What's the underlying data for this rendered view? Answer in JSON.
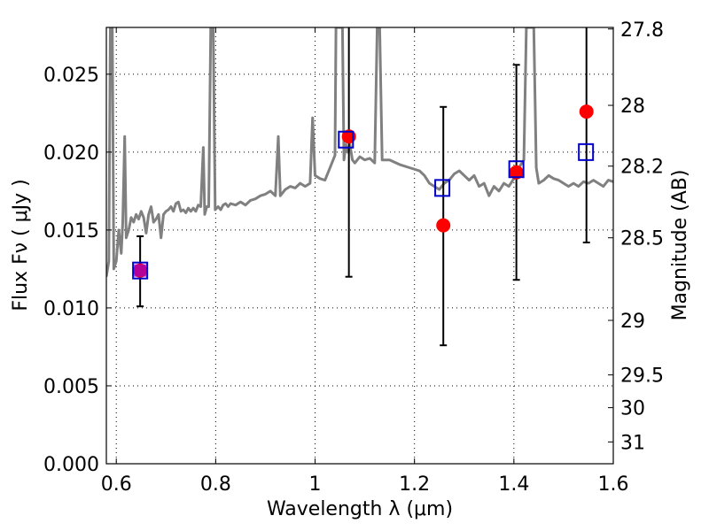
{
  "chart_data": {
    "type": "scatter",
    "title": "",
    "xlabel": "Wavelength  λ (μm)",
    "ylabel": "Flux  Fν  ( μJy )",
    "y2label": "Magnitude (AB)",
    "xlim": [
      0.58,
      1.6
    ],
    "ylim": [
      0.0,
      0.028
    ],
    "xticks": [
      0.6,
      0.8,
      1.0,
      1.2,
      1.4,
      1.6
    ],
    "xtick_labels": [
      "0.6",
      "0.8",
      "1",
      "1.2",
      "1.4",
      "1.6"
    ],
    "yticks": [
      0.0,
      0.005,
      0.01,
      0.015,
      0.02,
      0.025
    ],
    "ytick_labels": [
      "0.000",
      "0.005",
      "0.010",
      "0.015",
      "0.020",
      "0.025"
    ],
    "y2ticks": [
      {
        "label": "27.8",
        "flux": 0.0279
      },
      {
        "label": "28",
        "flux": 0.023
      },
      {
        "label": "28.2",
        "flux": 0.0191
      },
      {
        "label": "28.5",
        "flux": 0.0145
      },
      {
        "label": "29",
        "flux": 0.0092
      },
      {
        "label": "29.5",
        "flux": 0.0057
      },
      {
        "label": "30",
        "flux": 0.0036
      },
      {
        "label": "31",
        "flux": 0.0014
      }
    ],
    "grid": true,
    "series": [
      {
        "type": "line",
        "color": "#808080",
        "points": [
          [
            0.58,
            0.012
          ],
          [
            0.585,
            0.013
          ],
          [
            0.588,
            0.028
          ],
          [
            0.592,
            0.028
          ],
          [
            0.595,
            0.0125
          ],
          [
            0.6,
            0.013
          ],
          [
            0.605,
            0.015
          ],
          [
            0.61,
            0.0135
          ],
          [
            0.613,
            0.0155
          ],
          [
            0.617,
            0.021
          ],
          [
            0.62,
            0.0145
          ],
          [
            0.625,
            0.015
          ],
          [
            0.63,
            0.0158
          ],
          [
            0.635,
            0.0155
          ],
          [
            0.64,
            0.016
          ],
          [
            0.645,
            0.0157
          ],
          [
            0.65,
            0.0162
          ],
          [
            0.655,
            0.0158
          ],
          [
            0.66,
            0.0148
          ],
          [
            0.665,
            0.016
          ],
          [
            0.67,
            0.0165
          ],
          [
            0.675,
            0.0155
          ],
          [
            0.68,
            0.0157
          ],
          [
            0.685,
            0.016
          ],
          [
            0.69,
            0.0145
          ],
          [
            0.695,
            0.016
          ],
          [
            0.7,
            0.0162
          ],
          [
            0.705,
            0.0163
          ],
          [
            0.71,
            0.0165
          ],
          [
            0.715,
            0.0162
          ],
          [
            0.72,
            0.0167
          ],
          [
            0.725,
            0.0168
          ],
          [
            0.73,
            0.0162
          ],
          [
            0.735,
            0.0163
          ],
          [
            0.74,
            0.0161
          ],
          [
            0.745,
            0.0164
          ],
          [
            0.75,
            0.0162
          ],
          [
            0.755,
            0.0164
          ],
          [
            0.76,
            0.0162
          ],
          [
            0.765,
            0.0166
          ],
          [
            0.77,
            0.0165
          ],
          [
            0.775,
            0.0203
          ],
          [
            0.778,
            0.016
          ],
          [
            0.782,
            0.0165
          ],
          [
            0.786,
            0.0165
          ],
          [
            0.79,
            0.028
          ],
          [
            0.795,
            0.028
          ],
          [
            0.799,
            0.0163
          ],
          [
            0.805,
            0.0165
          ],
          [
            0.81,
            0.0163
          ],
          [
            0.815,
            0.0166
          ],
          [
            0.82,
            0.0167
          ],
          [
            0.825,
            0.0165
          ],
          [
            0.83,
            0.0167
          ],
          [
            0.84,
            0.0166
          ],
          [
            0.85,
            0.0168
          ],
          [
            0.86,
            0.0166
          ],
          [
            0.87,
            0.0169
          ],
          [
            0.88,
            0.017
          ],
          [
            0.89,
            0.0172
          ],
          [
            0.9,
            0.0173
          ],
          [
            0.91,
            0.0175
          ],
          [
            0.92,
            0.0172
          ],
          [
            0.926,
            0.021
          ],
          [
            0.93,
            0.0172
          ],
          [
            0.94,
            0.0176
          ],
          [
            0.95,
            0.0178
          ],
          [
            0.96,
            0.0177
          ],
          [
            0.97,
            0.018
          ],
          [
            0.98,
            0.0178
          ],
          [
            0.99,
            0.018
          ],
          [
            0.995,
            0.0222
          ],
          [
            1.0,
            0.0185
          ],
          [
            1.01,
            0.0183
          ],
          [
            1.02,
            0.0182
          ],
          [
            1.03,
            0.019
          ],
          [
            1.04,
            0.0198
          ],
          [
            1.042,
            0.028
          ],
          [
            1.055,
            0.028
          ],
          [
            1.058,
            0.0195
          ],
          [
            1.062,
            0.0205
          ],
          [
            1.065,
            0.02
          ],
          [
            1.07,
            0.0205
          ],
          [
            1.075,
            0.0195
          ],
          [
            1.08,
            0.0193
          ],
          [
            1.09,
            0.0197
          ],
          [
            1.1,
            0.0195
          ],
          [
            1.11,
            0.0196
          ],
          [
            1.12,
            0.0193
          ],
          [
            1.125,
            0.028
          ],
          [
            1.13,
            0.028
          ],
          [
            1.135,
            0.0195
          ],
          [
            1.15,
            0.0195
          ],
          [
            1.17,
            0.0192
          ],
          [
            1.19,
            0.019
          ],
          [
            1.21,
            0.0188
          ],
          [
            1.22,
            0.0185
          ],
          [
            1.23,
            0.018
          ],
          [
            1.24,
            0.0178
          ],
          [
            1.25,
            0.0176
          ],
          [
            1.26,
            0.018
          ],
          [
            1.27,
            0.0182
          ],
          [
            1.28,
            0.0186
          ],
          [
            1.29,
            0.0188
          ],
          [
            1.3,
            0.0185
          ],
          [
            1.31,
            0.0182
          ],
          [
            1.32,
            0.0185
          ],
          [
            1.33,
            0.0178
          ],
          [
            1.34,
            0.018
          ],
          [
            1.35,
            0.0172
          ],
          [
            1.36,
            0.0178
          ],
          [
            1.37,
            0.0175
          ],
          [
            1.38,
            0.018
          ],
          [
            1.39,
            0.0178
          ],
          [
            1.4,
            0.0183
          ],
          [
            1.41,
            0.019
          ],
          [
            1.42,
            0.0195
          ],
          [
            1.425,
            0.028
          ],
          [
            1.44,
            0.028
          ],
          [
            1.445,
            0.019
          ],
          [
            1.45,
            0.018
          ],
          [
            1.46,
            0.0182
          ],
          [
            1.47,
            0.0185
          ],
          [
            1.48,
            0.0183
          ],
          [
            1.49,
            0.0182
          ],
          [
            1.5,
            0.018
          ],
          [
            1.51,
            0.0178
          ],
          [
            1.52,
            0.018
          ],
          [
            1.53,
            0.0178
          ],
          [
            1.54,
            0.0181
          ],
          [
            1.55,
            0.018
          ],
          [
            1.56,
            0.0182
          ],
          [
            1.57,
            0.018
          ],
          [
            1.58,
            0.0178
          ],
          [
            1.59,
            0.0182
          ],
          [
            1.6,
            0.0181
          ]
        ]
      },
      {
        "type": "errorbar",
        "color": "#000000",
        "points": [
          {
            "x": 0.648,
            "low": 0.0101,
            "high": 0.0146
          },
          {
            "x": 1.068,
            "low": 0.012,
            "high": 0.028
          },
          {
            "x": 1.258,
            "low": 0.0076,
            "high": 0.0229
          },
          {
            "x": 1.405,
            "low": 0.0118,
            "high": 0.0256
          },
          {
            "x": 1.546,
            "low": 0.0142,
            "high": 0.028
          }
        ]
      },
      {
        "type": "scatter",
        "marker": "circle",
        "color": "#ff0000",
        "points": [
          [
            0.648,
            0.0124
          ],
          [
            1.068,
            0.021
          ],
          [
            1.258,
            0.0153
          ],
          [
            1.405,
            0.0187
          ],
          [
            1.546,
            0.0226
          ]
        ]
      },
      {
        "type": "scatter",
        "marker": "open-square",
        "color": "#0000cc",
        "points": [
          [
            0.648,
            0.0124
          ],
          [
            1.062,
            0.0208
          ],
          [
            1.256,
            0.0177
          ],
          [
            1.405,
            0.0189
          ],
          [
            1.545,
            0.02
          ]
        ]
      }
    ]
  }
}
